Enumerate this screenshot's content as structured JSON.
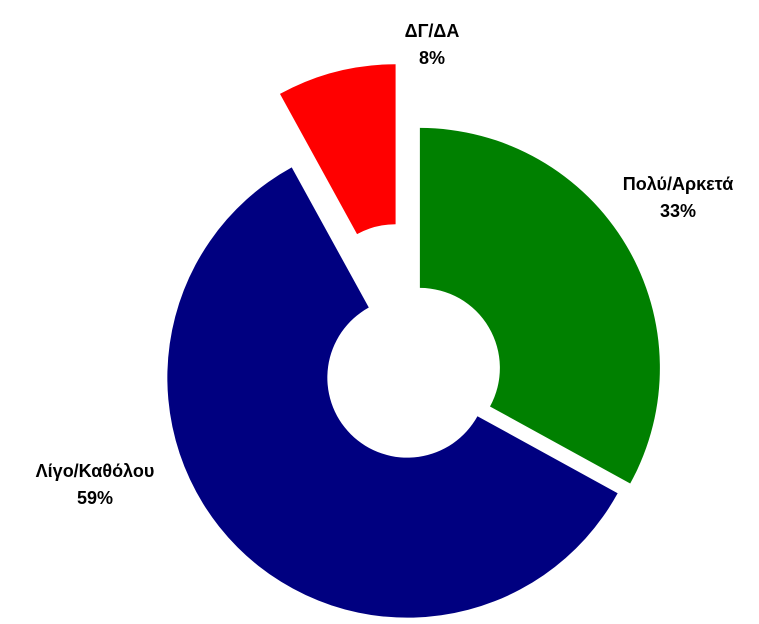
{
  "chart_data": {
    "type": "donut",
    "categories": [
      "Πολύ/Αρκετά",
      "Λίγο/Καθόλου",
      "ΔΓ/ΔΑ"
    ],
    "values": [
      33,
      59,
      8
    ],
    "value_labels": [
      "33%",
      "59%",
      "8%"
    ],
    "colors": [
      "#008000",
      "#000080",
      "#ff0000"
    ]
  }
}
